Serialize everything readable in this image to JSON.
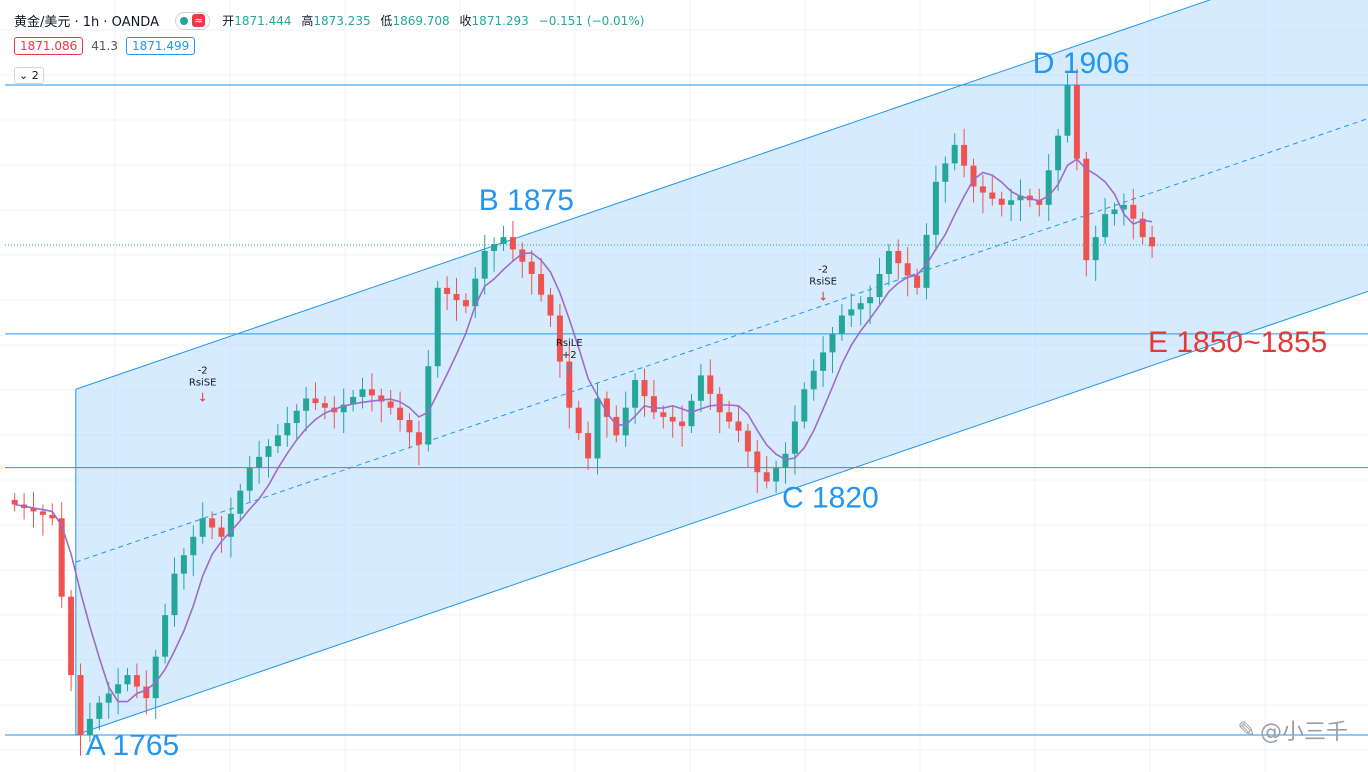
{
  "header": {
    "symbol": "黄金/美元 · 1h · OANDA",
    "indicator_icon": "wave-icon",
    "open_label": "开",
    "open": "1871.444",
    "high_label": "高",
    "high": "1873.235",
    "low_label": "低",
    "low": "1869.708",
    "close_label": "收",
    "close": "1871.293",
    "change": "−0.151 (−0.01%)"
  },
  "prices": {
    "bid": "1871.086",
    "spread": "41.3",
    "ask": "1871.499"
  },
  "layers_toggle": "2",
  "watermark": "@小三千",
  "colors": {
    "up": "#26a69a",
    "down": "#ef5350",
    "channel": "#2196f3",
    "label_blue": "#2196f3",
    "label_red": "#e53935",
    "ma": "#9c6cc9"
  },
  "chart_data": {
    "type": "candlestick",
    "symbol": "XAU/USD",
    "timeframe": "1h",
    "ylim": [
      1760,
      1915
    ],
    "horizontal_levels": [
      1906,
      1871.3,
      1852,
      1823,
      1765
    ],
    "key_points": [
      {
        "label": "A 1765",
        "bar": 7,
        "price": 1765
      },
      {
        "label": "B 1875",
        "bar": 52,
        "price": 1875
      },
      {
        "label": "C 1820",
        "bar": 80,
        "price": 1820
      },
      {
        "label": "D 1906",
        "bar": 112,
        "price": 1906
      },
      {
        "label": "E 1850~1855",
        "bar": 120,
        "price": 1852
      }
    ],
    "signals": [
      {
        "label": "-2",
        "sub": "RsiSE",
        "bar": 20,
        "price": 1836
      },
      {
        "label": "RsiLE",
        "sub": "+2",
        "bar": 59,
        "price": 1842
      },
      {
        "label": "-2",
        "sub": "RsiSE",
        "bar": 86,
        "price": 1858
      }
    ],
    "channel": {
      "start_bar": 7,
      "end_bar": 137,
      "lower_start": 1765,
      "upper_start": 1840,
      "slope_per_bar": 0.7
    },
    "pivots": [
      [
        0,
        1815
      ],
      [
        4,
        1812
      ],
      [
        6,
        1778
      ],
      [
        7,
        1765
      ],
      [
        9,
        1772
      ],
      [
        12,
        1778
      ],
      [
        14,
        1773
      ],
      [
        17,
        1800
      ],
      [
        20,
        1812
      ],
      [
        22,
        1808
      ],
      [
        25,
        1823
      ],
      [
        28,
        1830
      ],
      [
        31,
        1838
      ],
      [
        34,
        1835
      ],
      [
        37,
        1840
      ],
      [
        40,
        1836
      ],
      [
        43,
        1828
      ],
      [
        45,
        1862
      ],
      [
        48,
        1858
      ],
      [
        50,
        1870
      ],
      [
        52,
        1873
      ],
      [
        55,
        1865
      ],
      [
        57,
        1856
      ],
      [
        59,
        1836
      ],
      [
        61,
        1825
      ],
      [
        62,
        1838
      ],
      [
        64,
        1830
      ],
      [
        66,
        1842
      ],
      [
        68,
        1835
      ],
      [
        71,
        1832
      ],
      [
        73,
        1843
      ],
      [
        75,
        1835
      ],
      [
        77,
        1831
      ],
      [
        79,
        1822
      ],
      [
        80,
        1820
      ],
      [
        82,
        1826
      ],
      [
        84,
        1840
      ],
      [
        86,
        1848
      ],
      [
        88,
        1856
      ],
      [
        91,
        1860
      ],
      [
        93,
        1870
      ],
      [
        96,
        1862
      ],
      [
        98,
        1885
      ],
      [
        100,
        1893
      ],
      [
        102,
        1884
      ],
      [
        105,
        1880
      ],
      [
        107,
        1882
      ],
      [
        109,
        1880
      ],
      [
        111,
        1895
      ],
      [
        112,
        1906
      ],
      [
        113,
        1890
      ],
      [
        114,
        1868
      ],
      [
        116,
        1878
      ],
      [
        118,
        1880
      ],
      [
        119,
        1877
      ],
      [
        120,
        1873
      ],
      [
        121,
        1871
      ]
    ],
    "xlabel": "",
    "ylabel": "",
    "grid": true
  }
}
